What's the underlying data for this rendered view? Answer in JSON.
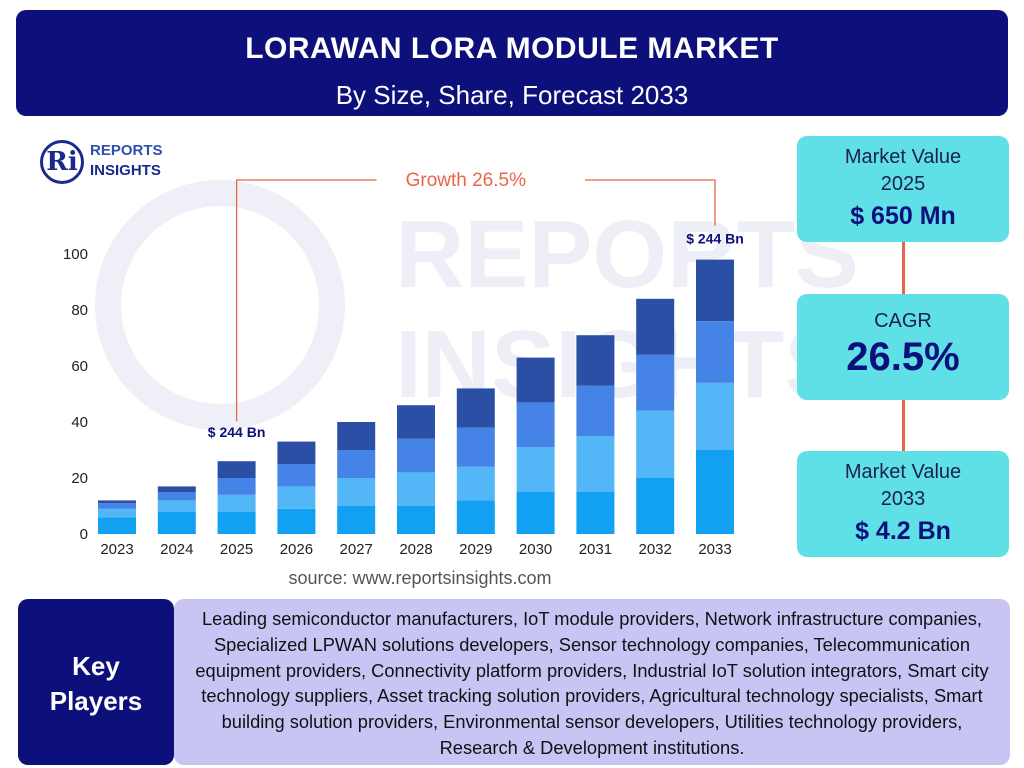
{
  "header": {
    "title": "LORAWAN LORA MODULE MARKET",
    "subtitle": "By Size, Share, Forecast 2033"
  },
  "logo": {
    "mark": "Ri",
    "line1": "REPORTS",
    "line2": "INSIGHTS"
  },
  "watermark": {
    "line1": "REPORTS",
    "line2": "INSIGHTS"
  },
  "source": "source: www.reportsinsights.com",
  "cards": {
    "market_2025": {
      "label1": "Market Value",
      "label2": "2025",
      "value": "$ 650 Mn"
    },
    "cagr": {
      "label": "CAGR",
      "value": "26.5%"
    },
    "market_2033": {
      "label1": "Market Value",
      "label2": "2033",
      "value": "$ 4.2 Bn"
    }
  },
  "key_players": {
    "heading1": "Key",
    "heading2": "Players",
    "text": "Leading semiconductor manufacturers, IoT module providers, Network infrastructure companies, Specialized LPWAN solutions developers, Sensor technology companies, Telecommunication equipment providers, Connectivity platform providers, Industrial IoT solution integrators, Smart city technology suppliers, Asset tracking solution providers, Agricultural technology specialists, Smart building solution providers, Environmental sensor developers, Utilities technology providers, Research & Development institutions."
  },
  "colors": {
    "seg1": "#12a0f2",
    "seg2": "#52b6f7",
    "seg3": "#4683e6",
    "seg4": "#2b4fa5",
    "accent": "#e8654a",
    "navy": "#0d0f7a"
  },
  "chart_data": {
    "type": "bar",
    "stacked": true,
    "categories": [
      "2023",
      "2024",
      "2025",
      "2026",
      "2027",
      "2028",
      "2029",
      "2030",
      "2031",
      "2032",
      "2033"
    ],
    "series": [
      {
        "values": [
          6,
          8,
          8,
          9,
          10,
          10,
          12,
          15,
          15,
          20,
          30
        ]
      },
      {
        "values": [
          3,
          4,
          6,
          8,
          10,
          12,
          12,
          16,
          20,
          24,
          24
        ]
      },
      {
        "values": [
          2,
          3,
          6,
          8,
          10,
          12,
          14,
          16,
          18,
          20,
          22
        ]
      },
      {
        "values": [
          1,
          2,
          6,
          8,
          10,
          12,
          14,
          16,
          18,
          20,
          22
        ]
      }
    ],
    "yticks": [
      0,
      20,
      40,
      60,
      80,
      100
    ],
    "ylim": [
      0,
      100
    ],
    "annotations": {
      "start_label": "$ 244 Bn",
      "end_label": "$ 244 Bn",
      "growth": "Growth  26.5%"
    }
  }
}
